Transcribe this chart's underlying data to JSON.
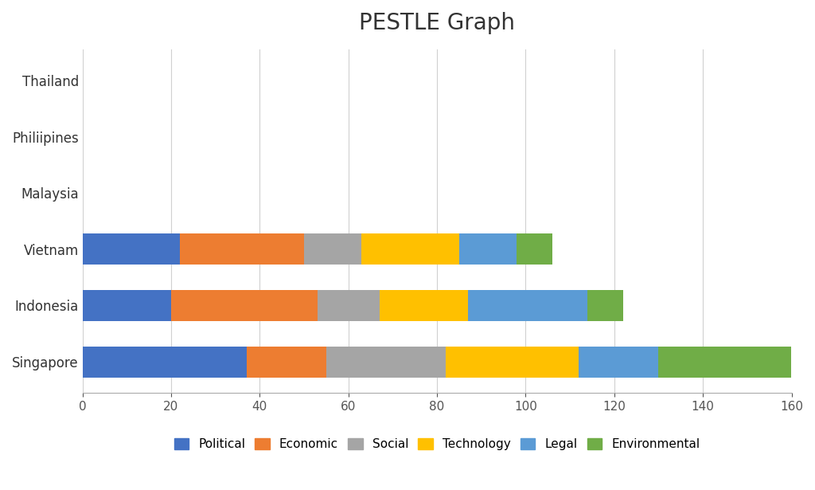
{
  "title": "PESTLE Graph",
  "title_fontsize": 20,
  "categories": [
    "Thailand",
    "Philiipines",
    "Malaysia",
    "Vietnam",
    "Indonesia",
    "Singapore"
  ],
  "series": {
    "Political": [
      0,
      0,
      0,
      22,
      20,
      37
    ],
    "Economic": [
      0,
      0,
      0,
      28,
      33,
      18
    ],
    "Social": [
      0,
      0,
      0,
      13,
      14,
      27
    ],
    "Technology": [
      0,
      0,
      0,
      22,
      20,
      30
    ],
    "Legal": [
      0,
      0,
      0,
      13,
      27,
      18
    ],
    "Environmental": [
      0,
      0,
      0,
      8,
      8,
      30
    ]
  },
  "colors": {
    "Political": "#4472C4",
    "Economic": "#ED7D31",
    "Social": "#A5A5A5",
    "Technology": "#FFC000",
    "Legal": "#5B9BD5",
    "Environmental": "#70AD47"
  },
  "xlim": [
    0,
    160
  ],
  "xticks": [
    0,
    20,
    40,
    60,
    80,
    100,
    120,
    140,
    160
  ],
  "background_color": "#FFFFFF",
  "grid_color": "#D0D0D0",
  "tick_fontsize": 11,
  "legend_fontsize": 11
}
